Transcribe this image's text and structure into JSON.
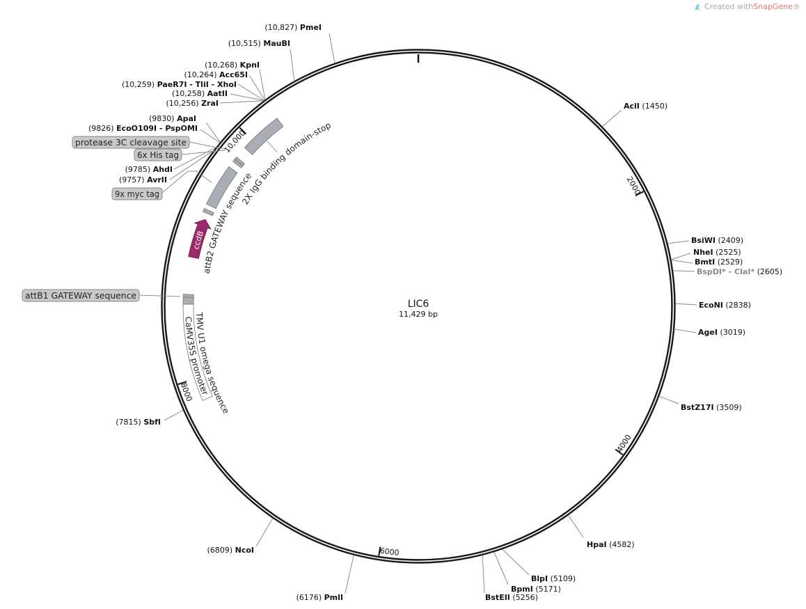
{
  "attribution": {
    "prefix": "Created with ",
    "brand": "SnapGene",
    "suffix": "®",
    "icon": "snapgene-logo-icon",
    "brand_color": "#e0756a"
  },
  "plasmid": {
    "name": "LIC6",
    "length_label": "11,429 bp",
    "length": 11429
  },
  "ticks": [
    {
      "position": 2000,
      "label": "2000"
    },
    {
      "position": 4000,
      "label": "4000"
    },
    {
      "position": 6000,
      "label": "6000"
    },
    {
      "position": 8000,
      "label": "8000"
    },
    {
      "position": 10000,
      "label": "10,000"
    }
  ],
  "colors": {
    "feature": "#a9aeb4",
    "feature_stroke": "#70757a",
    "ccdB": "#9c2a6b",
    "backbone": "#1a1a1a",
    "nonunique_enzyme": "#8a8a8a",
    "label_box": "#c7c9cb"
  },
  "enzymes": [
    {
      "name": "PmeI",
      "position": "10,827",
      "site": 10827
    },
    {
      "name": "MauBI",
      "position": "10,515",
      "site": 10515
    },
    {
      "name": "KpnI",
      "position": "10,268",
      "site": 10268
    },
    {
      "name": "Acc65I",
      "position": "10,264",
      "site": 10264
    },
    {
      "name": "PaeR7I - TliI - XhoI",
      "position": "10,259",
      "site": 10259
    },
    {
      "name": "AatII",
      "position": "10,258",
      "site": 10258
    },
    {
      "name": "ZraI",
      "position": "10,256",
      "site": 10256
    },
    {
      "name": "ApaI",
      "position": "9830",
      "site": 9830
    },
    {
      "name": "EcoO109I - PspOMI",
      "position": "9826",
      "site": 9826
    },
    {
      "name": "AhdI",
      "position": "9785",
      "site": 9785
    },
    {
      "name": "AvrII",
      "position": "9757",
      "site": 9757
    },
    {
      "name": "SbfI",
      "position": "7815",
      "site": 7815
    },
    {
      "name": "NcoI",
      "position": "6809",
      "site": 6809
    },
    {
      "name": "PmlI",
      "position": "6176",
      "site": 6176
    },
    {
      "name": "AclI",
      "position": "1450",
      "site": 1450
    },
    {
      "name": "BsiWI",
      "position": "2409",
      "site": 2409
    },
    {
      "name": "NheI",
      "position": "2525",
      "site": 2525
    },
    {
      "name": "BmtI",
      "position": "2529",
      "site": 2529
    },
    {
      "name": "BspDI* - ClaI*",
      "position": "2605",
      "site": 2605,
      "nonunique": true
    },
    {
      "name": "EcoNI",
      "position": "2838",
      "site": 2838
    },
    {
      "name": "AgeI",
      "position": "3019",
      "site": 3019
    },
    {
      "name": "BstZ17I",
      "position": "3509",
      "site": 3509
    },
    {
      "name": "HpaI",
      "position": "4582",
      "site": 4582
    },
    {
      "name": "BlpI",
      "position": "5109",
      "site": 5109
    },
    {
      "name": "BpmI",
      "position": "5171",
      "site": 5171
    },
    {
      "name": "BstEII",
      "position": "5256",
      "site": 5256
    }
  ],
  "features": [
    {
      "name": "2X IgG binding domain-stop",
      "start": 9918,
      "end": 10257,
      "kind": "box"
    },
    {
      "name": "protease 3C cleavage site",
      "start": 9800,
      "end": 9822,
      "kind": "box"
    },
    {
      "name": "6x His tag",
      "start": 9778,
      "end": 9800,
      "kind": "box"
    },
    {
      "name": "9x myc tag",
      "start": 9390,
      "end": 9727,
      "kind": "box"
    },
    {
      "name": "attB2 GATEWAY sequence",
      "start": 9325,
      "end": 9352,
      "kind": "box"
    },
    {
      "name": "ccdB",
      "start": 8960,
      "end": 9275,
      "kind": "arrow",
      "direction": "forward"
    },
    {
      "name": "attB1 GATEWAY sequence",
      "start": 8642,
      "end": 8665,
      "kind": "box"
    },
    {
      "name": "TMV U1 omega sequence",
      "start": 8588,
      "end": 8642,
      "kind": "box"
    },
    {
      "name": "CaMV35S promoter",
      "start": 7822,
      "end": 8588,
      "kind": "outline"
    }
  ]
}
